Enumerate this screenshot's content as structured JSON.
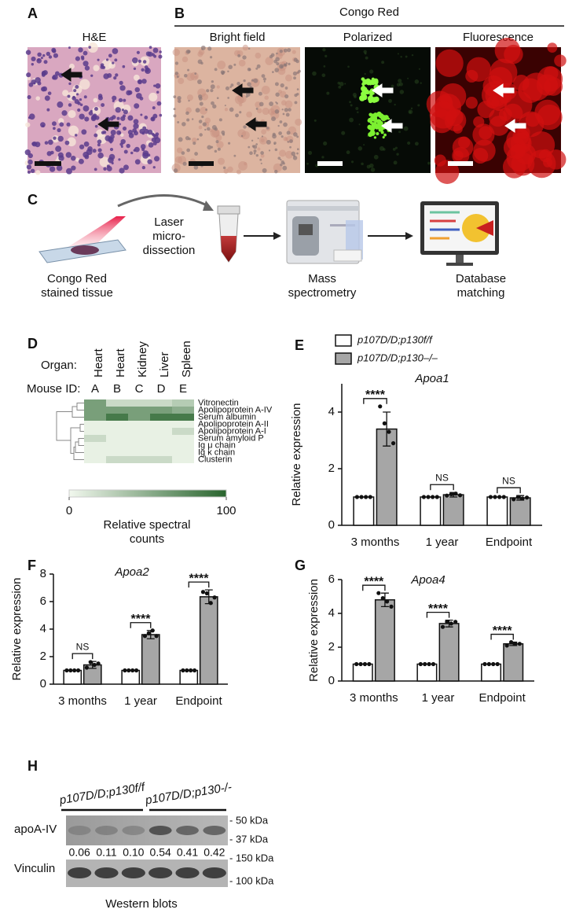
{
  "panels": {
    "A": {
      "letter": "A",
      "title": "H&E"
    },
    "B": {
      "letter": "B",
      "title": "Congo Red",
      "images": [
        "Bright field",
        "Polarized",
        "Fluorescence"
      ]
    },
    "C": {
      "letter": "C",
      "steps": [
        [
          "Congo Red",
          "stained tissue"
        ],
        [
          "Laser",
          "micro-",
          "dissection"
        ],
        [
          "Mass",
          "spectrometry"
        ],
        [
          "Database",
          "matching"
        ]
      ]
    },
    "D": {
      "letter": "D",
      "type": "heatmap",
      "organ_label": "Organ:",
      "mouse_label": "Mouse ID:",
      "organs": [
        "Heart",
        "Heart",
        "Kidney",
        "Liver",
        "Spleen"
      ],
      "mice": [
        "A",
        "B",
        "C",
        "D",
        "E"
      ],
      "rows": [
        "Vitronectin",
        "Apolipoprotein A-IV",
        "Serum albumin",
        "Apolipoprotein A-II",
        "Apolipoprotein A-I",
        "Serum amyloid P",
        "Ig μ chain",
        "Ig κ chain",
        "Clusterin"
      ],
      "values": [
        [
          60,
          20,
          20,
          20,
          30
        ],
        [
          60,
          60,
          60,
          60,
          50
        ],
        [
          60,
          85,
          60,
          85,
          85
        ],
        [
          5,
          5,
          5,
          5,
          5
        ],
        [
          5,
          5,
          5,
          5,
          20
        ],
        [
          20,
          5,
          5,
          5,
          5
        ],
        [
          5,
          5,
          5,
          5,
          5
        ],
        [
          5,
          5,
          5,
          5,
          5
        ],
        [
          5,
          20,
          20,
          20,
          5
        ]
      ],
      "colorbar": {
        "range": [
          0,
          100
        ],
        "ticks": [
          0,
          100
        ],
        "label": [
          "Relative spectral",
          "counts"
        ]
      }
    },
    "H": {
      "letter": "H",
      "groups": [
        "p107D/D;p130f/f",
        "p107D/D;p130-/-"
      ],
      "blots": [
        "apoA-IV",
        "Vinculin"
      ],
      "markers": [
        "- 50 kDa",
        "- 37 kDa",
        "- 150 kDa",
        "- 100 kDa"
      ],
      "values": [
        0.06,
        0.11,
        0.1,
        0.54,
        0.41,
        0.42
      ],
      "value_labels": [
        "0.06",
        "0.11",
        "0.10",
        "0.54",
        "0.41",
        "0.42"
      ],
      "caption": "Western blots"
    }
  },
  "chart_data": [
    {
      "type": "bar",
      "letter": "E",
      "title": "Apoa1",
      "y_label": "Relative expression",
      "categories": [
        "3 months",
        "1 year",
        "Endpoint"
      ],
      "series": [
        {
          "name": "p107D/D;p130f/f",
          "color": "#ffffff",
          "values": [
            1,
            1,
            1
          ],
          "points": [
            [
              1,
              1,
              1,
              1
            ],
            [
              1,
              1,
              1,
              1
            ],
            [
              1,
              1,
              1,
              1
            ]
          ]
        },
        {
          "name": "p107D/D;p130–/–",
          "color": "#a6a6a6",
          "values": [
            3.4,
            1.08,
            0.97
          ],
          "errors": [
            0.6,
            0.08,
            0.08
          ],
          "points": [
            [
              4.2,
              3.6,
              3.3,
              2.9
            ],
            [
              1.05,
              1.1,
              1.12,
              1.06
            ],
            [
              0.92,
              1.0,
              0.95,
              0.98
            ]
          ]
        }
      ],
      "significance": [
        "****",
        "NS",
        "NS"
      ],
      "ylim": [
        0,
        5
      ],
      "yticks": [
        0,
        2,
        4
      ]
    },
    {
      "type": "bar",
      "letter": "F",
      "title": "Apoa2",
      "y_label": "Relative expression",
      "categories": [
        "3 months",
        "1 year",
        "Endpoint"
      ],
      "series": [
        {
          "color": "#ffffff",
          "values": [
            1,
            1,
            1
          ],
          "points": [
            [
              1,
              1,
              1,
              1
            ],
            [
              1,
              1,
              1,
              1
            ],
            [
              1,
              1,
              1,
              1
            ]
          ]
        },
        {
          "color": "#a6a6a6",
          "values": [
            1.4,
            3.6,
            6.35
          ],
          "errors": [
            0.25,
            0.3,
            0.5
          ],
          "points": [
            [
              1.2,
              1.6,
              1.4,
              1.5
            ],
            [
              3.5,
              3.7,
              3.9,
              3.5
            ],
            [
              6.7,
              6.6,
              5.9,
              6.3
            ]
          ]
        }
      ],
      "significance": [
        "NS",
        "****",
        "****"
      ],
      "ylim": [
        0,
        8
      ],
      "yticks": [
        0,
        2,
        4,
        6,
        8
      ]
    },
    {
      "type": "bar",
      "letter": "G",
      "title": "Apoa4",
      "y_label": "Relative expression",
      "categories": [
        "3 months",
        "1 year",
        "Endpoint"
      ],
      "series": [
        {
          "color": "#ffffff",
          "values": [
            1,
            1,
            1
          ],
          "points": [
            [
              1,
              1,
              1,
              1
            ],
            [
              1,
              1,
              1,
              1
            ],
            [
              1,
              1,
              1,
              1
            ]
          ]
        },
        {
          "color": "#a6a6a6",
          "values": [
            4.8,
            3.4,
            2.2
          ],
          "errors": [
            0.4,
            0.2,
            0.1
          ],
          "points": [
            [
              5.2,
              4.9,
              4.7,
              4.4
            ],
            [
              3.2,
              3.5,
              3.4,
              3.5
            ],
            [
              2.1,
              2.3,
              2.2,
              2.2
            ]
          ]
        }
      ],
      "significance": [
        "****",
        "****",
        "****"
      ],
      "ylim": [
        0,
        6
      ],
      "yticks": [
        0,
        2,
        4,
        6
      ]
    }
  ]
}
